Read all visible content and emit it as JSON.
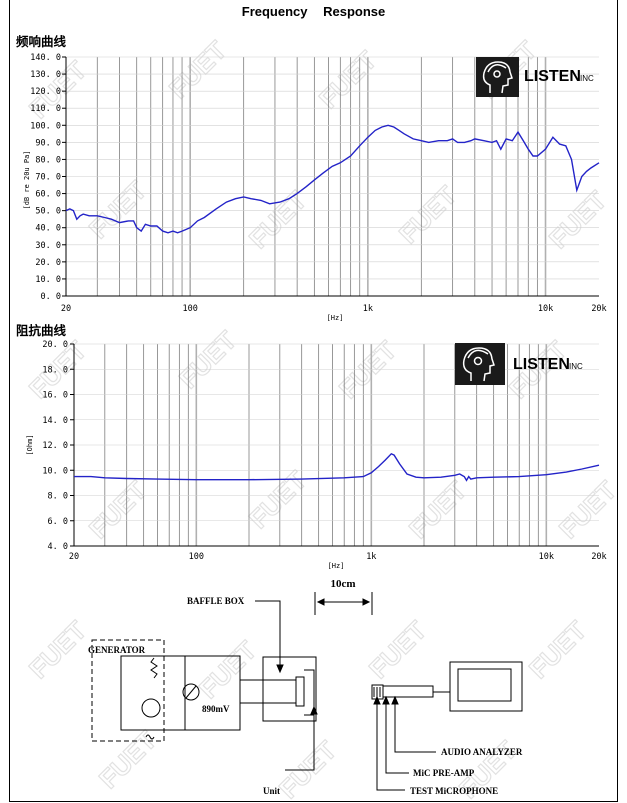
{
  "title": "Frequency    Response",
  "colors": {
    "curve": "#2323c8",
    "grid": "#7f7f7f",
    "axis": "#000000"
  },
  "logo": {
    "text": "LISTEN",
    "suffix": "INC",
    "icon": "head-with-headphones-icon"
  },
  "watermark": "FUET",
  "chart_data": [
    {
      "type": "line",
      "title": "频响曲线",
      "xlabel": "[Hz]",
      "ylabel": "[dB re 20u Pa]",
      "xscale": "log",
      "xlim": [
        20,
        20000
      ],
      "ylim": [
        0,
        140
      ],
      "x_tick_labels": [
        "20",
        "100",
        "1k",
        "10k",
        "20k"
      ],
      "y_tick_labels": [
        "0. 0",
        "10. 0",
        "20. 0",
        "30. 0",
        "40. 0",
        "50. 0",
        "60. 0",
        "70. 0",
        "80. 0",
        "90. 0",
        "100. 0",
        "110. 0",
        "120. 0",
        "130. 0",
        "140. 0"
      ],
      "grid": true,
      "series": [
        {
          "x": [
            20,
            21,
            22,
            23,
            24,
            25,
            27,
            30,
            33,
            36,
            40,
            45,
            48,
            50,
            53,
            56,
            60,
            65,
            70,
            75,
            80,
            85,
            90,
            95,
            100,
            110,
            120,
            140,
            160,
            180,
            200,
            220,
            250,
            280,
            320,
            360,
            400,
            450,
            500,
            560,
            630,
            700,
            800,
            900,
            1000,
            1100,
            1200,
            1300,
            1400,
            1500,
            1600,
            1800,
            2000,
            2200,
            2500,
            2800,
            3000,
            3200,
            3500,
            3800,
            4000,
            4500,
            5000,
            5300,
            5600,
            6000,
            6500,
            7000,
            7500,
            8000,
            8500,
            9000,
            10000,
            11000,
            12000,
            13000,
            14000,
            15000,
            16000,
            17000,
            18000,
            20000
          ],
          "y": [
            50,
            51,
            50,
            45,
            47,
            48,
            47,
            47,
            46,
            45,
            43,
            44,
            44,
            40,
            38,
            42,
            41,
            41,
            38,
            37,
            38,
            37,
            38,
            39,
            40,
            44,
            46,
            51,
            55,
            57,
            58,
            57,
            56,
            54,
            55,
            57,
            60,
            64,
            68,
            72,
            76,
            78,
            82,
            88,
            93,
            97,
            99,
            100,
            99,
            97,
            95,
            92,
            91,
            90,
            91,
            91,
            92,
            90,
            90,
            91,
            92,
            91,
            90,
            91,
            86,
            92,
            91,
            96,
            91,
            86,
            82,
            82,
            86,
            93,
            89,
            88,
            80,
            62,
            70,
            73,
            75,
            78
          ]
        }
      ]
    },
    {
      "type": "line",
      "title": "阻抗曲线",
      "xlabel": "[Hz]",
      "ylabel": "[Ohm]",
      "xscale": "log",
      "xlim": [
        20,
        20000
      ],
      "ylim": [
        4,
        20
      ],
      "x_tick_labels": [
        "20",
        "100",
        "1k",
        "10k",
        "20k"
      ],
      "y_tick_labels": [
        "4. 0",
        "6. 0",
        "8. 0",
        "10. 0",
        "12. 0",
        "14. 0",
        "16. 0",
        "18. 0",
        "20. 0"
      ],
      "grid": true,
      "series": [
        {
          "x": [
            20,
            25,
            30,
            40,
            60,
            100,
            200,
            400,
            700,
            900,
            1000,
            1100,
            1200,
            1300,
            1350,
            1450,
            1600,
            1800,
            2000,
            2500,
            3000,
            3200,
            3400,
            3500,
            3600,
            3700,
            4000,
            5000,
            7000,
            10000,
            13000,
            16000,
            20000
          ],
          "y": [
            9.5,
            9.5,
            9.4,
            9.35,
            9.3,
            9.25,
            9.25,
            9.3,
            9.4,
            9.5,
            9.8,
            10.3,
            10.8,
            11.3,
            11.2,
            10.5,
            9.7,
            9.45,
            9.4,
            9.45,
            9.6,
            9.7,
            9.5,
            9.2,
            9.5,
            9.3,
            9.4,
            9.45,
            9.5,
            9.65,
            9.85,
            10.1,
            10.4
          ]
        }
      ]
    }
  ],
  "diagram": {
    "distance": "10cm",
    "baffle_box": "BAFFLE BOX",
    "generator": "GENERATOR",
    "voltage": "890mV",
    "unit": "Unit",
    "audio_analyzer": "AUDIO ANALYZER",
    "mic_preamp": "MiC PRE-AMP",
    "test_mic": "TEST MiCROPHONE"
  }
}
